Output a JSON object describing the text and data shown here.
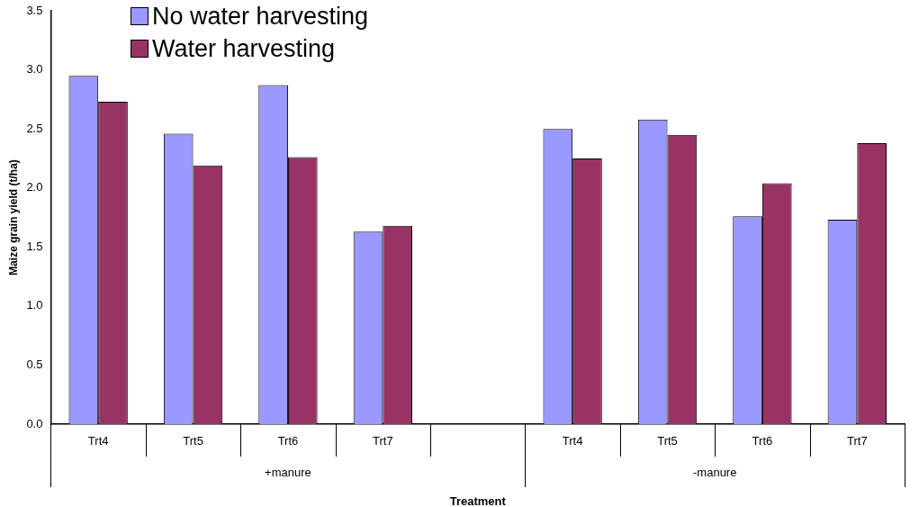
{
  "chart_data": {
    "type": "bar",
    "xlabel": "Treatment",
    "ylabel": "Maize grain yield (t/ha)",
    "categories": [
      "Trt4",
      "Trt5",
      "Trt6",
      "Trt7",
      null,
      "Trt4",
      "Trt5",
      "Trt6",
      "Trt7"
    ],
    "series": [
      {
        "name": "No water harvesting",
        "color": "#9999ff",
        "values": [
          2.95,
          2.46,
          2.87,
          1.63,
          null,
          2.5,
          2.58,
          1.76,
          1.73
        ]
      },
      {
        "name": "Water harvesting",
        "color": "#993366",
        "values": [
          2.73,
          2.19,
          2.26,
          1.68,
          null,
          2.25,
          2.45,
          2.04,
          2.38
        ]
      }
    ],
    "annotations": [
      "+manure",
      "-manure"
    ],
    "ylim": [
      0,
      3.5
    ],
    "yticks": [
      {
        "value": 0,
        "label": "0.0"
      },
      {
        "value": 0.5,
        "label": "0.5"
      },
      {
        "value": 1,
        "label": "1.0"
      },
      {
        "value": 1.5,
        "label": "1.5"
      },
      {
        "value": 2,
        "label": "2.0"
      },
      {
        "value": 2.5,
        "label": "2.5"
      },
      {
        "value": 3,
        "label": "3.0"
      },
      {
        "value": 3.5,
        "label": "3.5"
      }
    ],
    "grid": false,
    "legend": "top left"
  }
}
